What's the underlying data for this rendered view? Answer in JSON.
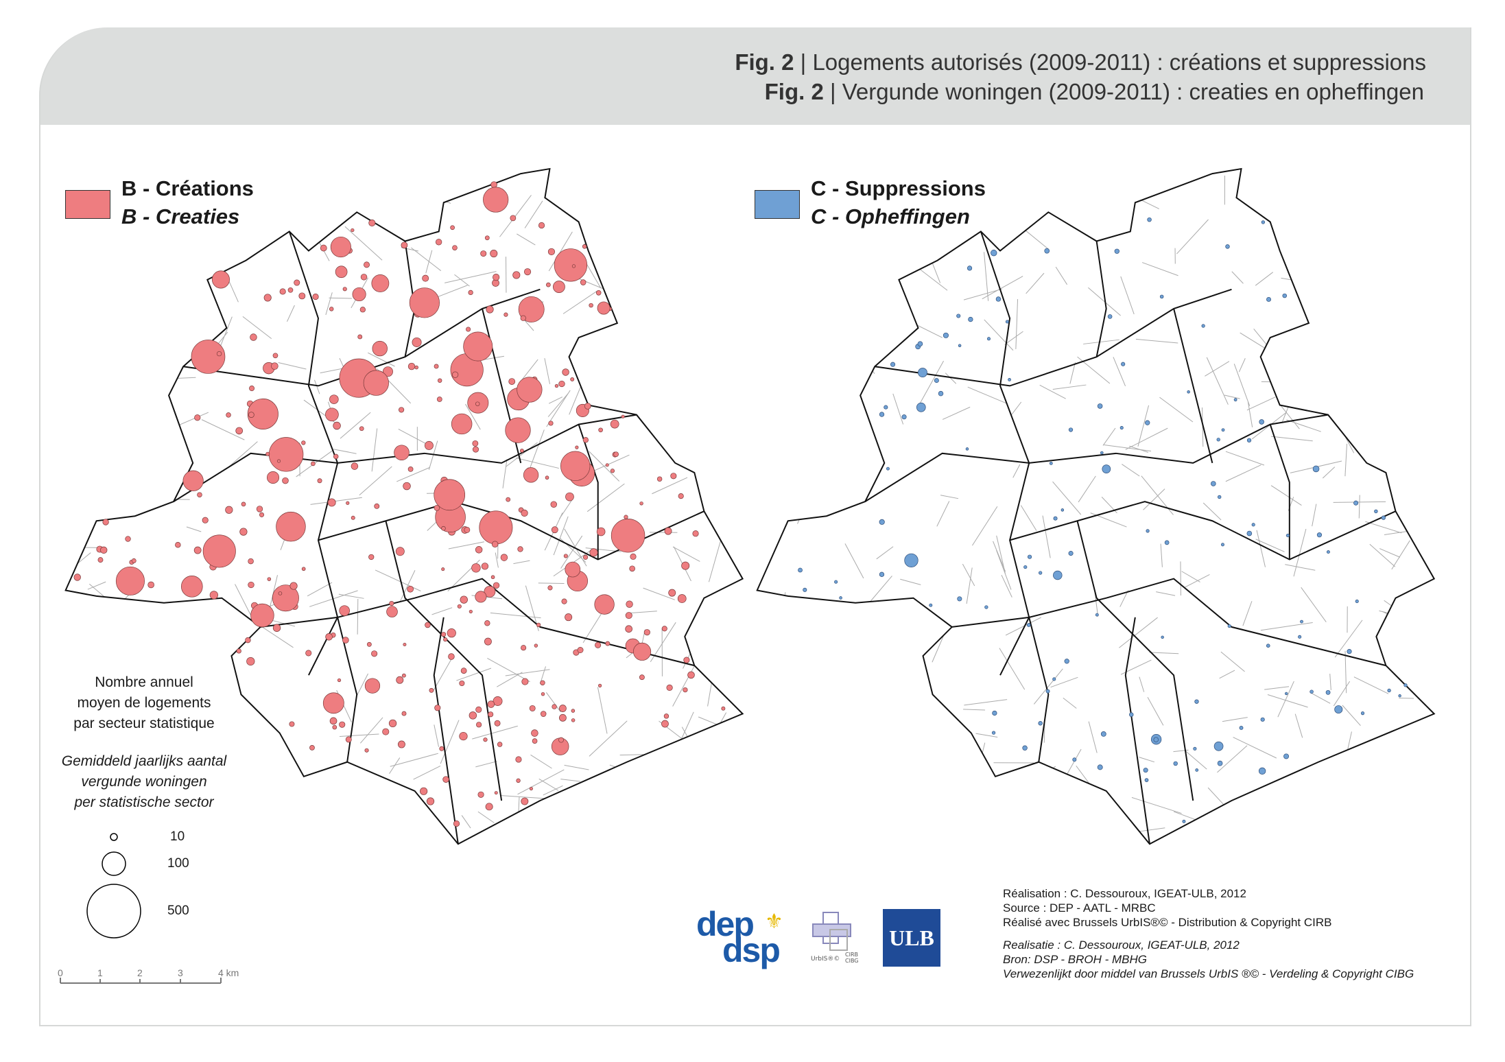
{
  "header": {
    "fig_label_fr": "Fig. 2",
    "title_fr": "Logements autorisés (2009-2011) : créations et suppressions",
    "fig_label_nl": "Fig. 2",
    "title_nl": "Vergunde woningen (2009-2011) : creaties en opheffingen"
  },
  "map_b": {
    "title_fr": "B - Créations",
    "title_nl": "B - Creaties",
    "color": "#ee7d80"
  },
  "map_c": {
    "title_fr": "C - Suppressions",
    "title_nl": "C - Opheffingen",
    "color": "#6fa0d4"
  },
  "legend": {
    "note_fr": [
      "Nombre annuel",
      "moyen de logements",
      "par secteur statistique"
    ],
    "note_nl": [
      "Gemiddeld jaarlijks aantal",
      "vergunde woningen",
      "per statistische sector"
    ],
    "sizes": [
      "10",
      "100",
      "500"
    ]
  },
  "scale_bar": {
    "labels": [
      "0",
      "1",
      "2",
      "3",
      "4 km"
    ]
  },
  "logos": {
    "dep_dsp": "dep dsp",
    "urbis": "UrbIS",
    "cirb": "CIRB CIBG",
    "ulb": "ULB"
  },
  "credits": {
    "fr": [
      "Réalisation : C. Dessouroux, IGEAT-ULB, 2012",
      "Source : DEP - AATL - MRBC",
      "Réalisé avec Brussels UrbIS®© - Distribution & Copyright CIRB"
    ],
    "nl": [
      "Realisatie : C. Dessouroux, IGEAT-ULB, 2012",
      "Bron: DSP - BROH - MBHG",
      "Verwezenlijkt door middel van Brussels UrbIS ®© - Verdeling & Copyright CIBG"
    ]
  }
}
